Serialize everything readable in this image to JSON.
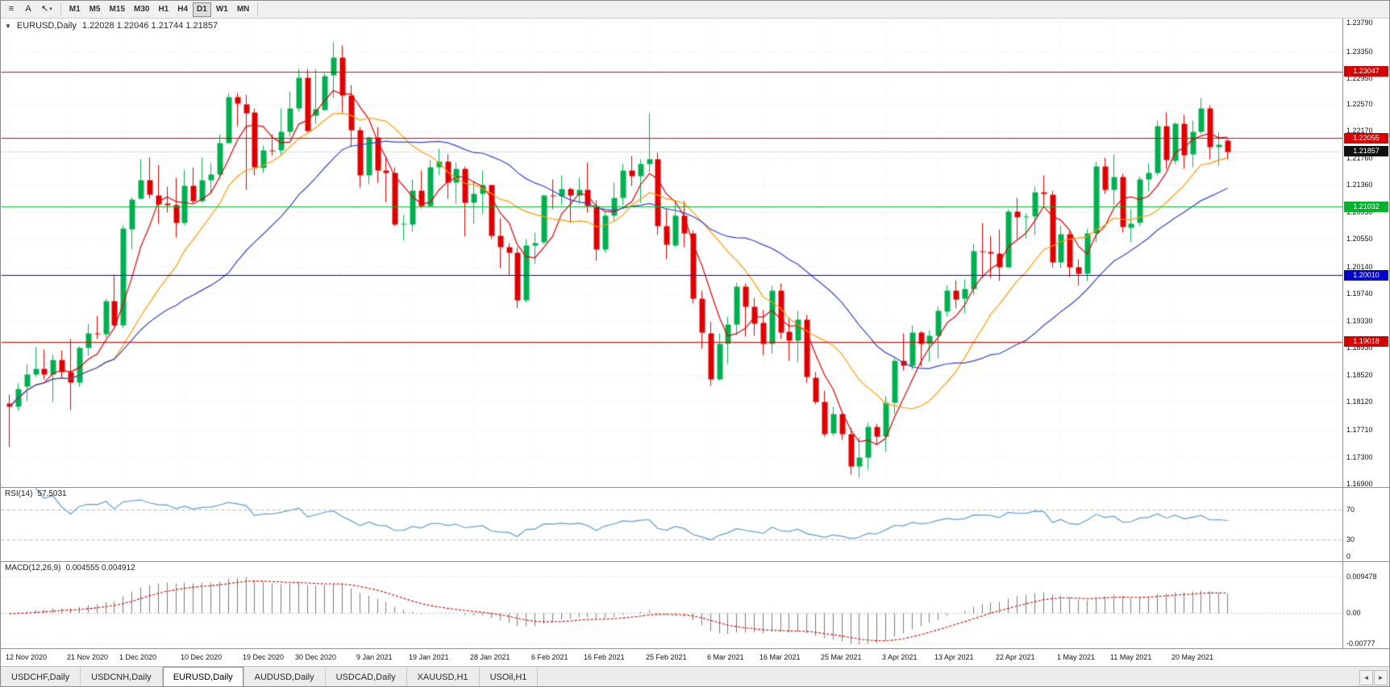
{
  "toolbar": {
    "icon_buttons": [
      {
        "name": "chart-list-button",
        "glyph": "≡"
      },
      {
        "name": "annotate-letter-button",
        "glyph": "A"
      },
      {
        "name": "cursor-tool-button",
        "glyph": "↖",
        "caret": "▾"
      }
    ],
    "timeframes": [
      {
        "label": "M1",
        "active": false
      },
      {
        "label": "M5",
        "active": false
      },
      {
        "label": "M15",
        "active": false
      },
      {
        "label": "M30",
        "active": false
      },
      {
        "label": "H1",
        "active": false
      },
      {
        "label": "H4",
        "active": false
      },
      {
        "label": "D1",
        "active": true
      },
      {
        "label": "W1",
        "active": false
      },
      {
        "label": "MN",
        "active": false
      }
    ]
  },
  "chart_data": {
    "type": "candlestick",
    "symbol_label": "EURUSD,Daily",
    "ohlc_label": "1.22028 1.22046 1.21744 1.21857",
    "collapse_glyph": "▼",
    "price_range": [
      1.1685,
      1.2384
    ],
    "colors": {
      "up": "#00b050",
      "down": "#e00000",
      "grid": "#e3e3e3",
      "vgrid": "#f0f0f0",
      "bid_line": "#bdbdbd"
    },
    "y_axis_labels": [
      "1.23790",
      "1.23350",
      "1.22950",
      "1.22570",
      "1.22170",
      "1.21760",
      "1.21360",
      "1.20950",
      "1.20550",
      "1.20140",
      "1.19740",
      "1.19330",
      "1.18930",
      "1.18520",
      "1.18120",
      "1.17710",
      "1.17300",
      "1.16900"
    ],
    "levels": [
      {
        "value": 1.23047,
        "label": "1.23047",
        "color": "#d40000"
      },
      {
        "value": 1.22055,
        "label": "1.22055",
        "color": "#d40000"
      },
      {
        "value": 1.21032,
        "label": "1.21032",
        "color": "#00b22d"
      },
      {
        "value": 1.2001,
        "label": "1.20010",
        "color": "#0000c8"
      },
      {
        "value": 1.19018,
        "label": "1.19018",
        "color": "#d40000"
      }
    ],
    "current_price": {
      "value": 1.21857,
      "label": "1.21857",
      "color": "#101010"
    },
    "moving_averages": [
      {
        "period": 5,
        "color": "#dd0000"
      },
      {
        "period": 13,
        "color": "#ff9a00"
      },
      {
        "period": 26,
        "color": "#3344cc"
      }
    ],
    "x_labels": [
      {
        "i": 0,
        "text": "12 Nov 2020"
      },
      {
        "i": 7,
        "text": "21 Nov 2020"
      },
      {
        "i": 13,
        "text": "1 Dec 2020"
      },
      {
        "i": 20,
        "text": "10 Dec 2020"
      },
      {
        "i": 27,
        "text": "19 Dec 2020"
      },
      {
        "i": 33,
        "text": "30 Dec 2020"
      },
      {
        "i": 40,
        "text": "9 Jan 2021"
      },
      {
        "i": 46,
        "text": "19 Jan 2021"
      },
      {
        "i": 53,
        "text": "28 Jan 2021"
      },
      {
        "i": 60,
        "text": "6 Feb 2021"
      },
      {
        "i": 66,
        "text": "16 Feb 2021"
      },
      {
        "i": 73,
        "text": "25 Feb 2021"
      },
      {
        "i": 80,
        "text": "6 Mar 2021"
      },
      {
        "i": 86,
        "text": "16 Mar 2021"
      },
      {
        "i": 93,
        "text": "25 Mar 2021"
      },
      {
        "i": 100,
        "text": "3 Apr 2021"
      },
      {
        "i": 106,
        "text": "13 Apr 2021"
      },
      {
        "i": 113,
        "text": "22 Apr 2021"
      },
      {
        "i": 120,
        "text": "1 May 2021"
      },
      {
        "i": 126,
        "text": "11 May 2021"
      },
      {
        "i": 133,
        "text": "20 May 2021"
      }
    ],
    "candles": [
      [
        1.181,
        1.1823,
        1.1745,
        1.1805
      ],
      [
        1.1805,
        1.184,
        1.1799,
        1.1832
      ],
      [
        1.1835,
        1.1869,
        1.1814,
        1.1853
      ],
      [
        1.1853,
        1.1894,
        1.185,
        1.1862
      ],
      [
        1.1862,
        1.1891,
        1.1846,
        1.1853
      ],
      [
        1.1853,
        1.1884,
        1.1813,
        1.1875
      ],
      [
        1.1875,
        1.189,
        1.1849,
        1.1857
      ],
      [
        1.1857,
        1.1906,
        1.18,
        1.1841
      ],
      [
        1.1841,
        1.1895,
        1.1835,
        1.1893
      ],
      [
        1.1893,
        1.1929,
        1.1881,
        1.1915
      ],
      [
        1.1915,
        1.1941,
        1.1906,
        1.1914
      ],
      [
        1.1914,
        1.1967,
        1.1909,
        1.1963
      ],
      [
        1.1963,
        1.2003,
        1.1924,
        1.1927
      ],
      [
        1.1927,
        1.2076,
        1.1923,
        1.2071
      ],
      [
        1.2071,
        1.2118,
        1.204,
        1.2115
      ],
      [
        1.2115,
        1.2175,
        1.2114,
        1.2143
      ],
      [
        1.2143,
        1.2177,
        1.2116,
        1.2121
      ],
      [
        1.2121,
        1.2166,
        1.2079,
        1.2108
      ],
      [
        1.2108,
        1.2134,
        1.2095,
        1.2106
      ],
      [
        1.2106,
        1.2147,
        1.2058,
        1.208
      ],
      [
        1.208,
        1.2159,
        1.2076,
        1.2135
      ],
      [
        1.2135,
        1.2163,
        1.2109,
        1.2112
      ],
      [
        1.2112,
        1.2177,
        1.211,
        1.2143
      ],
      [
        1.2143,
        1.2169,
        1.2123,
        1.2152
      ],
      [
        1.2152,
        1.2212,
        1.2146,
        1.2199
      ],
      [
        1.2199,
        1.2273,
        1.2197,
        1.2267
      ],
      [
        1.2267,
        1.2273,
        1.2224,
        1.2257
      ],
      [
        1.2257,
        1.2271,
        1.2129,
        1.2244
      ],
      [
        1.2244,
        1.225,
        1.2151,
        1.2162
      ],
      [
        1.2162,
        1.2195,
        1.2154,
        1.2188
      ],
      [
        1.2188,
        1.2212,
        1.218,
        1.2187
      ],
      [
        1.2187,
        1.225,
        1.2181,
        1.2215
      ],
      [
        1.2215,
        1.2276,
        1.2208,
        1.225
      ],
      [
        1.225,
        1.231,
        1.2246,
        1.2296
      ],
      [
        1.2296,
        1.231,
        1.2214,
        1.2216
      ],
      [
        1.2239,
        1.2309,
        1.2228,
        1.2249
      ],
      [
        1.2249,
        1.2303,
        1.2247,
        1.2299
      ],
      [
        1.2299,
        1.2349,
        1.2266,
        1.2326
      ],
      [
        1.2326,
        1.2344,
        1.2245,
        1.227
      ],
      [
        1.227,
        1.2285,
        1.2193,
        1.2218
      ],
      [
        1.2218,
        1.2223,
        1.2132,
        1.2151
      ],
      [
        1.2151,
        1.2208,
        1.2137,
        1.2207
      ],
      [
        1.2207,
        1.2223,
        1.214,
        1.2158
      ],
      [
        1.2158,
        1.2179,
        1.2111,
        1.2154
      ],
      [
        1.2154,
        1.2163,
        1.2075,
        1.2077
      ],
      [
        1.2077,
        1.2092,
        1.2053,
        1.2078
      ],
      [
        1.2078,
        1.2145,
        1.2066,
        1.2128
      ],
      [
        1.2128,
        1.2158,
        1.2101,
        1.2105
      ],
      [
        1.2105,
        1.2173,
        1.2103,
        1.2163
      ],
      [
        1.2163,
        1.219,
        1.2151,
        1.2171
      ],
      [
        1.2171,
        1.2182,
        1.2116,
        1.214
      ],
      [
        1.214,
        1.217,
        1.2108,
        1.216
      ],
      [
        1.216,
        1.2164,
        1.2059,
        1.211
      ],
      [
        1.211,
        1.2142,
        1.2078,
        1.2123
      ],
      [
        1.2123,
        1.2158,
        1.2093,
        1.2136
      ],
      [
        1.2136,
        1.2136,
        1.2056,
        1.206
      ],
      [
        1.206,
        1.2087,
        1.2012,
        1.2043
      ],
      [
        1.2043,
        1.205,
        1.2002,
        1.2035
      ],
      [
        1.2035,
        1.2044,
        1.1952,
        1.1964
      ],
      [
        1.1964,
        1.2055,
        1.1961,
        1.2046
      ],
      [
        1.2046,
        1.2065,
        1.2018,
        1.205
      ],
      [
        1.205,
        1.2122,
        1.2048,
        1.212
      ],
      [
        1.212,
        1.2145,
        1.21,
        1.2119
      ],
      [
        1.2119,
        1.2151,
        1.2106,
        1.213
      ],
      [
        1.213,
        1.2133,
        1.208,
        1.212
      ],
      [
        1.212,
        1.2147,
        1.2109,
        1.2129
      ],
      [
        1.2129,
        1.217,
        1.2095,
        1.2105
      ],
      [
        1.2105,
        1.2113,
        1.2023,
        1.204
      ],
      [
        1.204,
        1.2097,
        1.2035,
        1.2091
      ],
      [
        1.2091,
        1.214,
        1.2082,
        1.2117
      ],
      [
        1.2117,
        1.2168,
        1.2106,
        1.2158
      ],
      [
        1.2158,
        1.218,
        1.2135,
        1.215
      ],
      [
        1.215,
        1.2175,
        1.211,
        1.2168
      ],
      [
        1.2168,
        1.2243,
        1.2155,
        1.2175
      ],
      [
        1.2175,
        1.2184,
        1.2061,
        1.2075
      ],
      [
        1.2075,
        1.2101,
        1.2026,
        1.2047
      ],
      [
        1.2047,
        1.2113,
        1.2043,
        1.2091
      ],
      [
        1.2091,
        1.2112,
        1.2043,
        1.2064
      ],
      [
        1.2064,
        1.2069,
        1.1959,
        1.1966
      ],
      [
        1.1966,
        1.1978,
        1.1892,
        1.1915
      ],
      [
        1.1915,
        1.1932,
        1.1836,
        1.1846
      ],
      [
        1.1846,
        1.1915,
        1.1845,
        1.1899
      ],
      [
        1.1899,
        1.194,
        1.1869,
        1.1928
      ],
      [
        1.1928,
        1.199,
        1.1912,
        1.1985
      ],
      [
        1.1985,
        1.1989,
        1.191,
        1.1955
      ],
      [
        1.1955,
        1.1968,
        1.1911,
        1.193
      ],
      [
        1.193,
        1.195,
        1.1882,
        1.1899
      ],
      [
        1.1899,
        1.1986,
        1.1885,
        1.1979
      ],
      [
        1.1979,
        1.1989,
        1.1906,
        1.1917
      ],
      [
        1.1917,
        1.1936,
        1.1874,
        1.1904
      ],
      [
        1.1904,
        1.1948,
        1.1871,
        1.1935
      ],
      [
        1.1935,
        1.1942,
        1.1842,
        1.1849
      ],
      [
        1.1849,
        1.1857,
        1.1809,
        1.1813
      ],
      [
        1.1813,
        1.1829,
        1.1761,
        1.1765
      ],
      [
        1.1765,
        1.1805,
        1.1762,
        1.1794
      ],
      [
        1.1794,
        1.1796,
        1.1756,
        1.1764
      ],
      [
        1.1764,
        1.1774,
        1.1704,
        1.1716
      ],
      [
        1.1716,
        1.176,
        1.17,
        1.1729
      ],
      [
        1.1729,
        1.1781,
        1.1712,
        1.1775
      ],
      [
        1.1775,
        1.178,
        1.1749,
        1.1761
      ],
      [
        1.1761,
        1.1821,
        1.1738,
        1.1811
      ],
      [
        1.1811,
        1.1878,
        1.1795,
        1.1874
      ],
      [
        1.1874,
        1.1915,
        1.186,
        1.1867
      ],
      [
        1.1867,
        1.1927,
        1.1861,
        1.1916
      ],
      [
        1.1916,
        1.1919,
        1.1865,
        1.1899
      ],
      [
        1.1899,
        1.192,
        1.1873,
        1.1911
      ],
      [
        1.1911,
        1.1954,
        1.1878,
        1.1948
      ],
      [
        1.1948,
        1.1987,
        1.194,
        1.1979
      ],
      [
        1.1979,
        1.1994,
        1.1952,
        1.1966
      ],
      [
        1.1966,
        1.1996,
        1.1945,
        1.1981
      ],
      [
        1.1981,
        1.2048,
        1.1972,
        1.2037
      ],
      [
        1.2037,
        1.208,
        1.1998,
        1.2036
      ],
      [
        1.2036,
        1.206,
        1.1998,
        1.2034
      ],
      [
        1.2034,
        1.207,
        1.1993,
        1.2014
      ],
      [
        1.2014,
        1.21,
        1.2012,
        1.2097
      ],
      [
        1.2097,
        1.2117,
        1.2056,
        1.2089
      ],
      [
        1.2089,
        1.2094,
        1.2057,
        1.2089
      ],
      [
        1.2089,
        1.2134,
        1.2061,
        1.2125
      ],
      [
        1.2125,
        1.215,
        1.2103,
        1.2122
      ],
      [
        1.2122,
        1.2128,
        1.2013,
        1.2021
      ],
      [
        1.2021,
        1.2076,
        1.2012,
        1.2063
      ],
      [
        1.2063,
        1.2067,
        1.1999,
        1.2014
      ],
      [
        1.2014,
        1.2026,
        1.1986,
        1.2004
      ],
      [
        1.2004,
        1.2071,
        1.1993,
        1.2064
      ],
      [
        1.2064,
        1.2171,
        1.2051,
        1.2164
      ],
      [
        1.2164,
        1.2177,
        1.2123,
        1.2129
      ],
      [
        1.2129,
        1.2182,
        1.2106,
        1.2148
      ],
      [
        1.2148,
        1.2153,
        1.2065,
        1.2073
      ],
      [
        1.2073,
        1.21,
        1.2051,
        1.2079
      ],
      [
        1.2079,
        1.2149,
        1.2075,
        1.2144
      ],
      [
        1.2144,
        1.2169,
        1.2126,
        1.2154
      ],
      [
        1.2154,
        1.2233,
        1.2151,
        1.2224
      ],
      [
        1.2224,
        1.2245,
        1.216,
        1.2173
      ],
      [
        1.2173,
        1.223,
        1.2168,
        1.2228
      ],
      [
        1.2228,
        1.2241,
        1.216,
        1.2181
      ],
      [
        1.2181,
        1.2232,
        1.2163,
        1.2215
      ],
      [
        1.2215,
        1.2266,
        1.2212,
        1.225
      ],
      [
        1.225,
        1.2255,
        1.2175,
        1.2192
      ],
      [
        1.2192,
        1.2215,
        1.2165,
        1.2196
      ],
      [
        1.22028,
        1.22046,
        1.21744,
        1.21857
      ]
    ],
    "rsi": {
      "label": "RSI(14)",
      "value_label": "57.5031",
      "period": 14,
      "color": "#5b9bd5",
      "levels": [
        70,
        30
      ],
      "range": [
        0,
        100
      ],
      "axis": [
        {
          "v": 70,
          "t": "70"
        },
        {
          "v": 30,
          "t": "30"
        },
        {
          "v": 0,
          "t": "0"
        }
      ]
    },
    "macd": {
      "label": "MACD(12,26,9)",
      "values_label": "0.004555 0.004912",
      "fast": 12,
      "slow": 26,
      "signal": 9,
      "hist_color": "#7a7a7a",
      "signal_color": "#cc0000",
      "range": [
        -0.009,
        0.0131
      ],
      "axis": [
        {
          "v": 0.009478,
          "t": "0.009478"
        },
        {
          "v": 0,
          "t": "0.00"
        },
        {
          "v": -0.00777,
          "t": "-0.00777"
        }
      ]
    }
  },
  "tabs": [
    {
      "label": "USDCHF,Daily",
      "active": false
    },
    {
      "label": "USDCNH,Daily",
      "active": false
    },
    {
      "label": "EURUSD,Daily",
      "active": true
    },
    {
      "label": "AUDUSD,Daily",
      "active": false
    },
    {
      "label": "USDCAD,Daily",
      "active": false
    },
    {
      "label": "XAUUSD,H1",
      "active": false
    },
    {
      "label": "USOil,H1",
      "active": false
    }
  ],
  "tab_scroll": {
    "left": "◄",
    "right": "►"
  }
}
